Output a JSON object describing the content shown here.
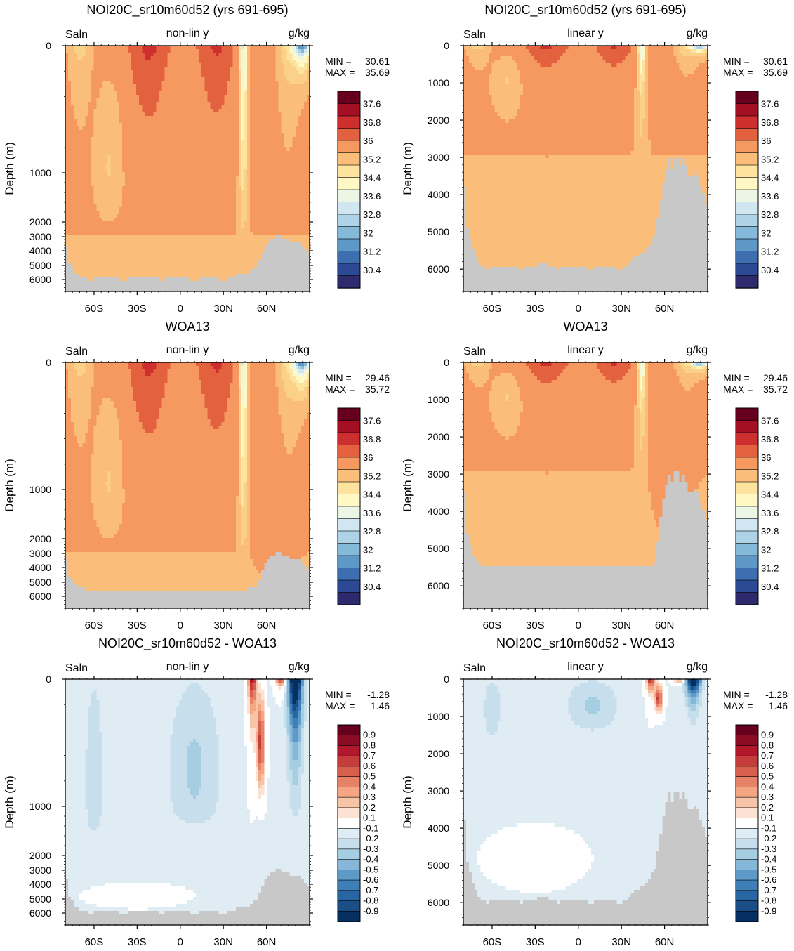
{
  "figure": {
    "units": "g/kg",
    "variable": "Saln"
  },
  "chart_data": [
    {
      "type": "heatmap",
      "title": "NOI20C_sr10m60d52 (yrs 691-695)",
      "field": "Saln",
      "axis_mode": "non-lin y",
      "units": "g/kg",
      "ylabel": "Depth (m)",
      "y_ticks": [
        0,
        1000,
        2000,
        3000,
        4000,
        5000,
        6000
      ],
      "x_ticks": [
        "60S",
        "30S",
        "0",
        "30N",
        "60N"
      ],
      "x_tick_values": [
        -60,
        -30,
        0,
        30,
        60
      ],
      "xlim": [
        -80,
        90
      ],
      "stats": {
        "min_label": "MIN =",
        "min": "30.61",
        "max_label": "MAX =",
        "max": "35.69"
      },
      "colorbar": {
        "labels": [
          "37.6",
          "36.8",
          "36",
          "35.2",
          "34.4",
          "33.6",
          "32.8",
          "32",
          "31.2",
          "30.4"
        ],
        "colors": [
          "#67001f",
          "#a50f24",
          "#cc2f2e",
          "#e3613f",
          "#f59961",
          "#fbbe7a",
          "#fee39e",
          "#fff8c4",
          "#ecf6e4",
          "#d0e7f2",
          "#aed3e6",
          "#84b9d9",
          "#5d98c6",
          "#3d6fb0",
          "#2b4a93",
          "#2d2a6e"
        ]
      }
    },
    {
      "type": "heatmap",
      "title": "NOI20C_sr10m60d52 (yrs 691-695)",
      "field": "Saln",
      "axis_mode": "linear y",
      "units": "g/kg",
      "ylabel": "Depth (m)",
      "y_ticks": [
        0,
        1000,
        2000,
        3000,
        4000,
        5000,
        6000
      ],
      "x_ticks": [
        "60S",
        "30S",
        "0",
        "30N",
        "60N"
      ],
      "x_tick_values": [
        -60,
        -30,
        0,
        30,
        60
      ],
      "xlim": [
        -80,
        90
      ],
      "stats": {
        "min_label": "MIN =",
        "min": "30.61",
        "max_label": "MAX =",
        "max": "35.69"
      },
      "colorbar": {
        "labels": [
          "37.6",
          "36.8",
          "36",
          "35.2",
          "34.4",
          "33.6",
          "32.8",
          "32",
          "31.2",
          "30.4"
        ],
        "colors": [
          "#67001f",
          "#a50f24",
          "#cc2f2e",
          "#e3613f",
          "#f59961",
          "#fbbe7a",
          "#fee39e",
          "#fff8c4",
          "#ecf6e4",
          "#d0e7f2",
          "#aed3e6",
          "#84b9d9",
          "#5d98c6",
          "#3d6fb0",
          "#2b4a93",
          "#2d2a6e"
        ]
      }
    },
    {
      "type": "heatmap",
      "title": "WOA13",
      "field": "Saln",
      "axis_mode": "non-lin y",
      "units": "g/kg",
      "ylabel": "Depth (m)",
      "y_ticks": [
        0,
        1000,
        2000,
        3000,
        4000,
        5000,
        6000
      ],
      "x_ticks": [
        "60S",
        "30S",
        "0",
        "30N",
        "60N"
      ],
      "x_tick_values": [
        -60,
        -30,
        0,
        30,
        60
      ],
      "xlim": [
        -80,
        90
      ],
      "stats": {
        "min_label": "MIN =",
        "min": "29.46",
        "max_label": "MAX =",
        "max": "35.72"
      },
      "colorbar": {
        "labels": [
          "37.6",
          "36.8",
          "36",
          "35.2",
          "34.4",
          "33.6",
          "32.8",
          "32",
          "31.2",
          "30.4"
        ],
        "colors": [
          "#67001f",
          "#a50f24",
          "#cc2f2e",
          "#e3613f",
          "#f59961",
          "#fbbe7a",
          "#fee39e",
          "#fff8c4",
          "#ecf6e4",
          "#d0e7f2",
          "#aed3e6",
          "#84b9d9",
          "#5d98c6",
          "#3d6fb0",
          "#2b4a93",
          "#2d2a6e"
        ]
      }
    },
    {
      "type": "heatmap",
      "title": "WOA13",
      "field": "Saln",
      "axis_mode": "linear y",
      "units": "g/kg",
      "ylabel": "Depth (m)",
      "y_ticks": [
        0,
        1000,
        2000,
        3000,
        4000,
        5000,
        6000
      ],
      "x_ticks": [
        "60S",
        "30S",
        "0",
        "30N",
        "60N"
      ],
      "x_tick_values": [
        -60,
        -30,
        0,
        30,
        60
      ],
      "xlim": [
        -80,
        90
      ],
      "stats": {
        "min_label": "MIN =",
        "min": "29.46",
        "max_label": "MAX =",
        "max": "35.72"
      },
      "colorbar": {
        "labels": [
          "37.6",
          "36.8",
          "36",
          "35.2",
          "34.4",
          "33.6",
          "32.8",
          "32",
          "31.2",
          "30.4"
        ],
        "colors": [
          "#67001f",
          "#a50f24",
          "#cc2f2e",
          "#e3613f",
          "#f59961",
          "#fbbe7a",
          "#fee39e",
          "#fff8c4",
          "#ecf6e4",
          "#d0e7f2",
          "#aed3e6",
          "#84b9d9",
          "#5d98c6",
          "#3d6fb0",
          "#2b4a93",
          "#2d2a6e"
        ]
      }
    },
    {
      "type": "heatmap",
      "title": "NOI20C_sr10m60d52 - WOA13",
      "field": "Saln",
      "axis_mode": "non-lin y",
      "units": "g/kg",
      "ylabel": "Depth (m)",
      "y_ticks": [
        0,
        1000,
        2000,
        3000,
        4000,
        5000,
        6000
      ],
      "x_ticks": [
        "60S",
        "30S",
        "0",
        "30N",
        "60N"
      ],
      "x_tick_values": [
        -60,
        -30,
        0,
        30,
        60
      ],
      "xlim": [
        -80,
        90
      ],
      "stats": {
        "min_label": "MIN =",
        "min": "-1.28",
        "max_label": "MAX =",
        "max": "1.46"
      },
      "colorbar": {
        "labels": [
          "0.9",
          "0.8",
          "0.7",
          "0.6",
          "0.5",
          "0.4",
          "0.3",
          "0.2",
          "0.1",
          "-0.1",
          "-0.2",
          "-0.3",
          "-0.4",
          "-0.5",
          "-0.6",
          "-0.7",
          "-0.8",
          "-0.9"
        ],
        "colors": [
          "#67001f",
          "#8c0c25",
          "#b2182b",
          "#c43c3c",
          "#d6604d",
          "#e58267",
          "#f4a582",
          "#f8c4a8",
          "#fbe2d3",
          "#ffffff",
          "#e0ecf4",
          "#c7deec",
          "#a6cee3",
          "#86b7d8",
          "#5e9ac8",
          "#3f7fb8",
          "#2765a3",
          "#1b4e87",
          "#053061"
        ]
      }
    },
    {
      "type": "heatmap",
      "title": "NOI20C_sr10m60d52 - WOA13",
      "field": "Saln",
      "axis_mode": "linear y",
      "units": "g/kg",
      "ylabel": "Depth (m)",
      "y_ticks": [
        0,
        1000,
        2000,
        3000,
        4000,
        5000,
        6000
      ],
      "x_ticks": [
        "60S",
        "30S",
        "0",
        "30N",
        "60N"
      ],
      "x_tick_values": [
        -60,
        -30,
        0,
        30,
        60
      ],
      "xlim": [
        -80,
        90
      ],
      "stats": {
        "min_label": "MIN =",
        "min": "-1.28",
        "max_label": "MAX =",
        "max": "1.46"
      },
      "colorbar": {
        "labels": [
          "0.9",
          "0.8",
          "0.7",
          "0.6",
          "0.5",
          "0.4",
          "0.3",
          "0.2",
          "0.1",
          "-0.1",
          "-0.2",
          "-0.3",
          "-0.4",
          "-0.5",
          "-0.6",
          "-0.7",
          "-0.8",
          "-0.9"
        ],
        "colors": [
          "#67001f",
          "#8c0c25",
          "#b2182b",
          "#c43c3c",
          "#d6604d",
          "#e58267",
          "#f4a582",
          "#f8c4a8",
          "#fbe2d3",
          "#ffffff",
          "#e0ecf4",
          "#c7deec",
          "#a6cee3",
          "#86b7d8",
          "#5e9ac8",
          "#3f7fb8",
          "#2765a3",
          "#1b4e87",
          "#053061"
        ]
      }
    }
  ]
}
